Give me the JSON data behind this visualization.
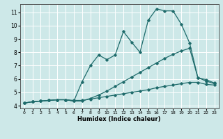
{
  "xlabel": "Humidex (Indice chaleur)",
  "xlim": [
    -0.5,
    23.5
  ],
  "ylim": [
    3.8,
    11.6
  ],
  "yticks": [
    4,
    5,
    6,
    7,
    8,
    9,
    10,
    11
  ],
  "xticks": [
    0,
    1,
    2,
    3,
    4,
    5,
    6,
    7,
    8,
    9,
    10,
    11,
    12,
    13,
    14,
    15,
    16,
    17,
    18,
    19,
    20,
    21,
    22,
    23
  ],
  "bg_color": "#cde8e8",
  "line_color": "#1e6b6b",
  "grid_color": "#ffffff",
  "lines": [
    {
      "x": [
        0,
        1,
        2,
        3,
        4,
        5,
        6,
        7,
        8,
        9,
        10,
        11,
        12,
        13,
        14,
        15,
        16,
        17,
        18,
        19,
        20,
        21,
        22,
        23
      ],
      "y": [
        4.2,
        4.3,
        4.35,
        4.4,
        4.45,
        4.45,
        4.4,
        4.4,
        4.5,
        4.6,
        4.7,
        4.8,
        4.9,
        5.0,
        5.1,
        5.2,
        5.35,
        5.45,
        5.55,
        5.65,
        5.75,
        5.75,
        5.6,
        5.55
      ]
    },
    {
      "x": [
        0,
        1,
        2,
        3,
        4,
        5,
        6,
        7,
        8,
        9,
        10,
        11,
        12,
        13,
        14,
        15,
        16,
        17,
        18,
        19,
        20,
        21,
        22,
        23
      ],
      "y": [
        4.2,
        4.3,
        4.35,
        4.4,
        4.45,
        4.45,
        4.35,
        4.35,
        4.55,
        4.8,
        5.1,
        5.45,
        5.8,
        6.15,
        6.5,
        6.85,
        7.2,
        7.55,
        7.85,
        8.1,
        8.3,
        6.1,
        5.95,
        5.7
      ]
    },
    {
      "x": [
        0,
        1,
        2,
        3,
        4,
        5,
        6,
        7,
        8,
        9,
        10,
        11,
        12,
        13,
        14,
        15,
        16,
        17,
        18,
        19,
        20,
        21,
        22,
        23
      ],
      "y": [
        4.2,
        4.3,
        4.35,
        4.4,
        4.45,
        4.45,
        4.35,
        5.8,
        7.0,
        7.8,
        7.45,
        7.8,
        9.55,
        8.75,
        8.0,
        10.4,
        11.25,
        11.1,
        11.1,
        10.1,
        8.7,
        6.1,
        5.85,
        5.65
      ]
    }
  ]
}
